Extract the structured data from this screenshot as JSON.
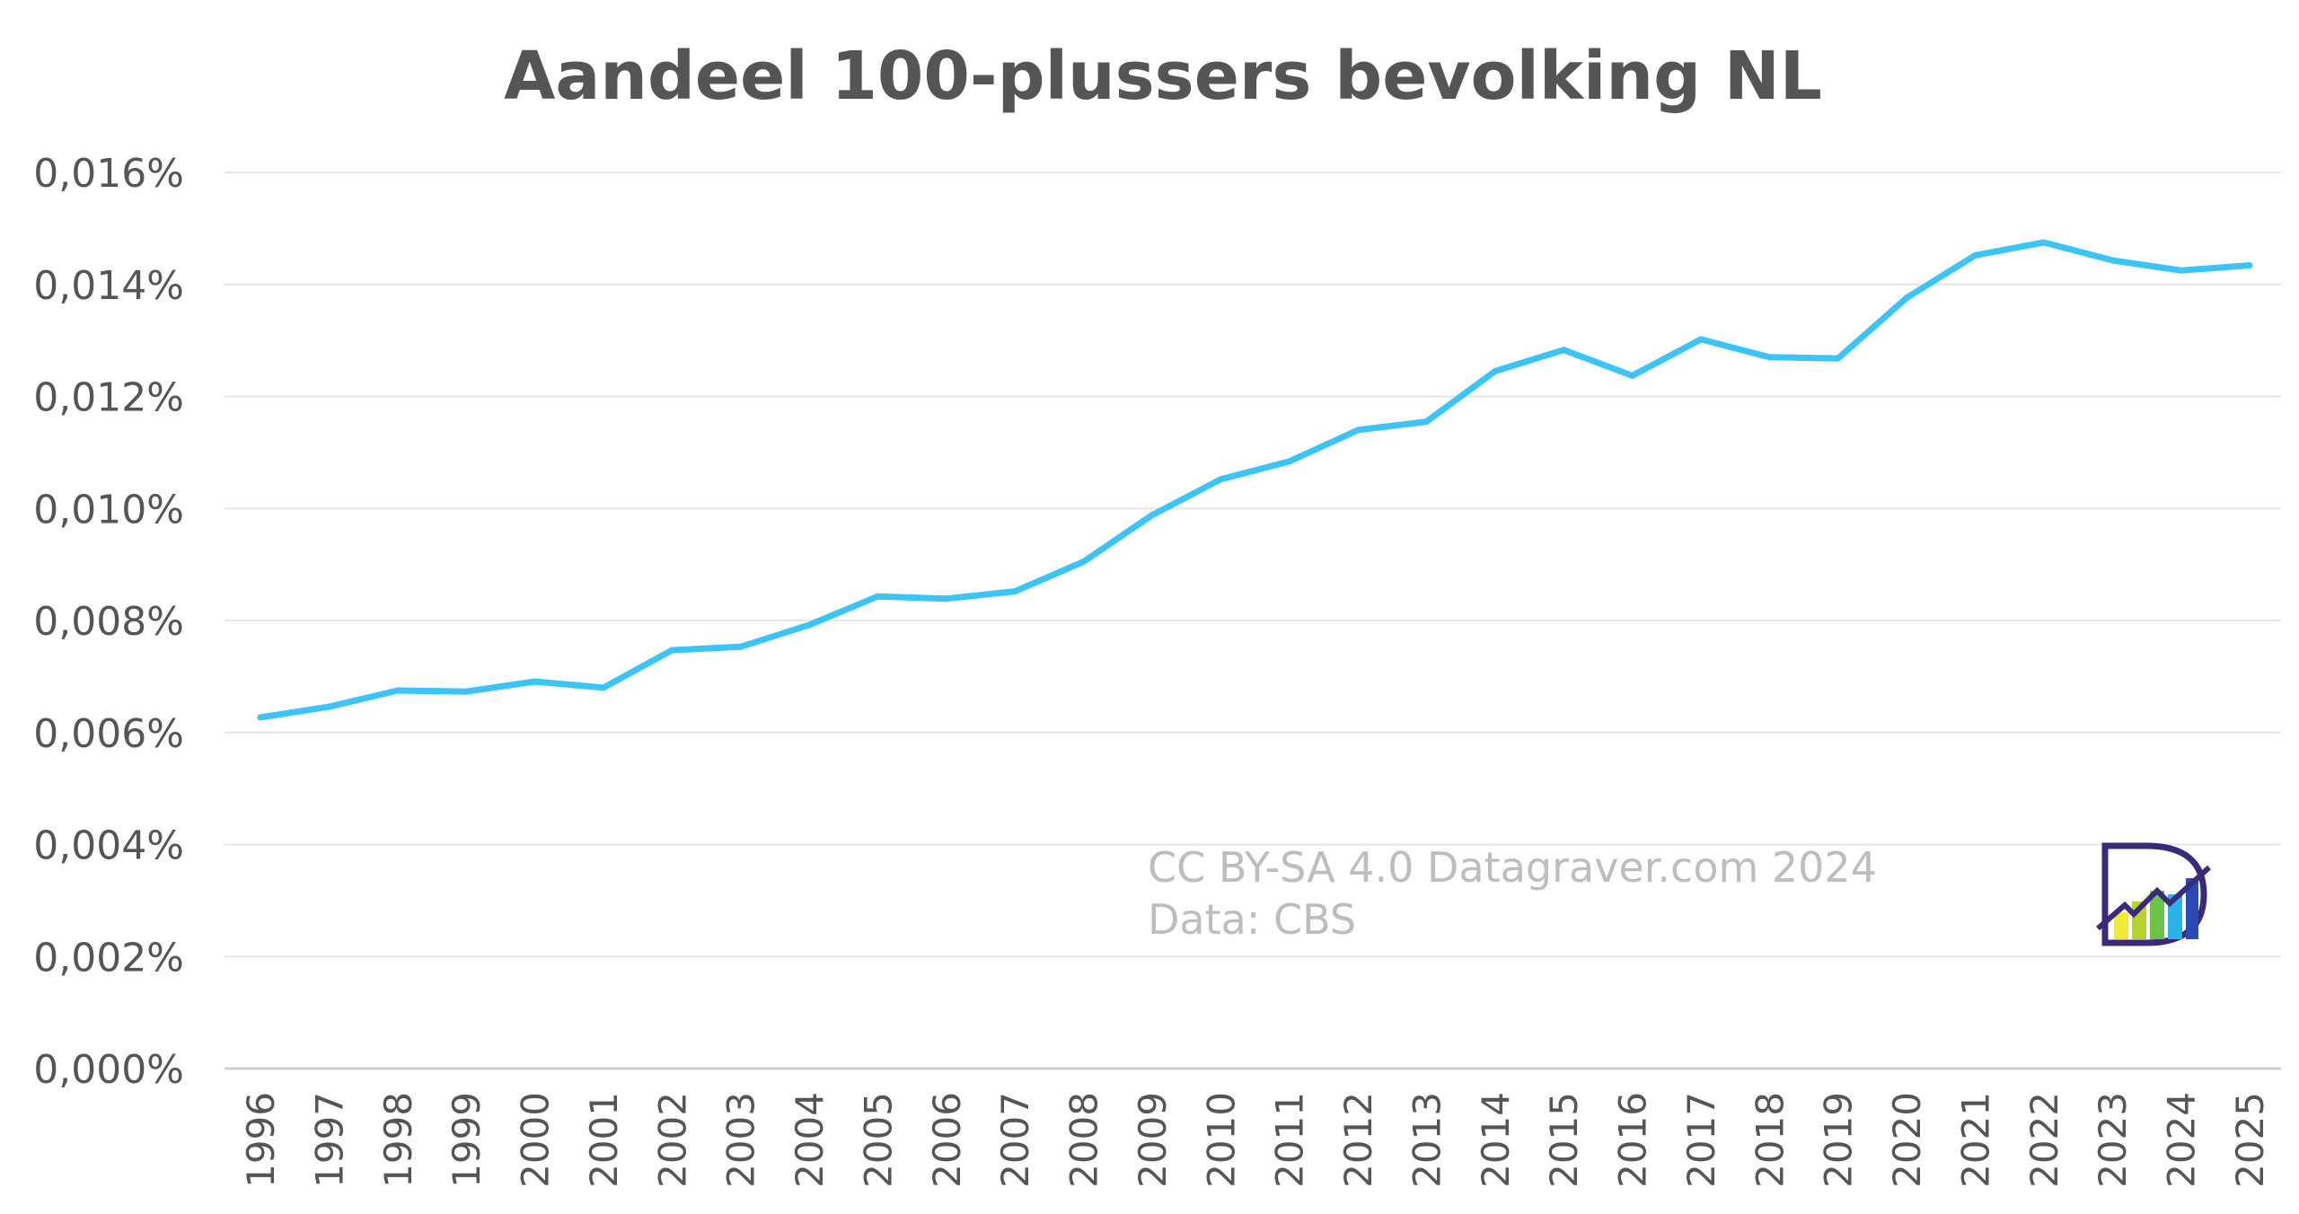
{
  "chart_data": {
    "type": "line",
    "title": "Aandeel 100-plussers bevolking NL",
    "xlabel": "",
    "ylabel": "",
    "ylim": [
      0,
      0.016
    ],
    "grid": true,
    "y_ticks": [
      "0,000%",
      "0,002%",
      "0,004%",
      "0,006%",
      "0,008%",
      "0,010%",
      "0,012%",
      "0,014%",
      "0,016%"
    ],
    "categories": [
      "1996",
      "1997",
      "1998",
      "1999",
      "2000",
      "2001",
      "2002",
      "2003",
      "2004",
      "2005",
      "2006",
      "2007",
      "2008",
      "2009",
      "2010",
      "2011",
      "2012",
      "2013",
      "2014",
      "2015",
      "2016",
      "2017",
      "2018",
      "2019",
      "2020",
      "2021",
      "2022",
      "2023",
      "2024",
      "2025"
    ],
    "series": [
      {
        "color": "#3dc4f7",
        "values": [
          0.00627,
          0.00646,
          0.00675,
          0.00673,
          0.00691,
          0.0068,
          0.00747,
          0.00753,
          0.00792,
          0.00843,
          0.00839,
          0.00852,
          0.00905,
          0.00988,
          0.01052,
          0.01084,
          0.0114,
          0.01155,
          0.01245,
          0.01283,
          0.01237,
          0.01302,
          0.0127,
          0.01268,
          0.01376,
          0.01452,
          0.01475,
          0.01443,
          0.01425,
          0.01434
        ]
      }
    ],
    "annotations": [
      "CC BY-SA 4.0 Datagraver.com 2024",
      "Data: CBS"
    ]
  },
  "logo": {
    "name": "datagraver-logo-icon",
    "colors": [
      "#3b2a7a",
      "#f2e93a",
      "#b5d334",
      "#6cc24a",
      "#2bb3e8",
      "#2a4bb3"
    ]
  }
}
